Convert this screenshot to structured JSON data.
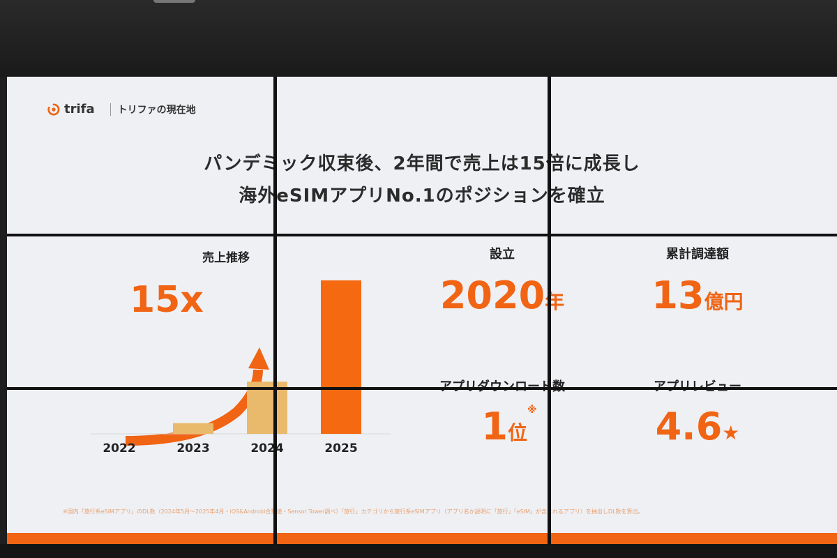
{
  "brand": {
    "name": "trifa",
    "section": "トリファの現在地"
  },
  "headline": {
    "line1": "パンデミック収束後、2年間で売上は15倍に成長し",
    "line2": "海外eSIMアプリNo.1のポジションを確立"
  },
  "chart_data": {
    "type": "bar",
    "title": "売上推移",
    "categories": [
      "2022",
      "2023",
      "2024",
      "2025"
    ],
    "values": [
      0,
      0.07,
      0.34,
      1.0
    ],
    "series_colors": [
      "#e9b96c",
      "#e9b96c",
      "#e9b96c",
      "#f56a10"
    ],
    "ylim": [
      0,
      1
    ],
    "xlabel": "",
    "ylabel": "",
    "annotation": "15x",
    "grid": false
  },
  "stats": {
    "founded": {
      "label": "設立",
      "value": "2020",
      "unit": "年"
    },
    "funding": {
      "label": "累計調達額",
      "value": "13",
      "unit": "億円"
    },
    "downloads": {
      "label": "アプリダウンロード数",
      "value": "1",
      "unit": "位",
      "mark": "※"
    },
    "review": {
      "label": "アプリレビュー",
      "value": "4.6",
      "unit": "★"
    }
  },
  "footnote": "※国内「旅行系eSIMアプリ」のDL数（2024年5月～2025年4月・iOS&Android合算値・Sensor Tower調べ）「旅行」カテゴリから旅行系eSIMアプリ（アプリ名か説明に「旅行」「eSIM」が含まれるアプリ）を抽出しDL数を算出。",
  "colors": {
    "accent": "#f06414",
    "bar_light": "#e9b96c"
  }
}
